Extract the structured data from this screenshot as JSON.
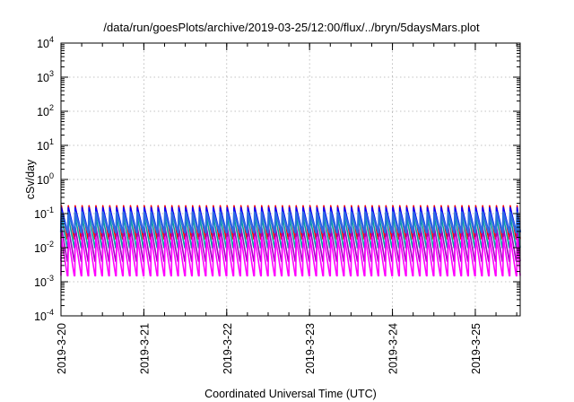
{
  "chart_data": {
    "type": "line",
    "title": "/data/run/goesPlots/archive/2019-03-25/12:00/flux/../bryn/5daysMars.plot",
    "xlabel": "Coordinated Universal Time (UTC)",
    "ylabel": "cSv/day",
    "yscale": "log",
    "ylim": [
      0.0001,
      10000
    ],
    "xlim": [
      "2019-03-20",
      "2019-03-25 13:00"
    ],
    "grid": true,
    "y_ticks": [
      {
        "base": "10",
        "exp": "-4"
      },
      {
        "base": "10",
        "exp": "-3"
      },
      {
        "base": "10",
        "exp": "-2"
      },
      {
        "base": "10",
        "exp": "-1"
      },
      {
        "base": "10",
        "exp": "0"
      },
      {
        "base": "10",
        "exp": "1"
      },
      {
        "base": "10",
        "exp": "2"
      },
      {
        "base": "10",
        "exp": "3"
      },
      {
        "base": "10",
        "exp": "4"
      }
    ],
    "x_ticks": [
      "2019-3-20",
      "2019-3-21",
      "2019-3-22",
      "2019-3-23",
      "2019-3-24",
      "2019-3-25"
    ],
    "cycle_hours": 2,
    "series": [
      {
        "color": "#ff0000",
        "peak": 0.17,
        "trough": 0.018
      },
      {
        "color": "#0000ff",
        "peak": 0.15,
        "trough": 0.03
      },
      {
        "color": "#00a0a0",
        "peak": 0.08,
        "trough": 0.01
      },
      {
        "color": "#a000c0",
        "peak": 0.04,
        "trough": 0.004
      },
      {
        "color": "#ff00ff",
        "peak": 0.02,
        "trough": 0.0015
      },
      {
        "color": "#2e6de0",
        "peak": 0.11,
        "trough": 0.028
      }
    ]
  }
}
